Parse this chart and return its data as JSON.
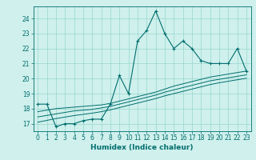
{
  "xlabel": "Humidex (Indice chaleur)",
  "bg_color": "#cff0ec",
  "line_color": "#006e6e",
  "grid_color": "#99d5d0",
  "x_values": [
    0,
    1,
    2,
    3,
    4,
    5,
    6,
    7,
    8,
    9,
    10,
    11,
    12,
    13,
    14,
    15,
    16,
    17,
    18,
    19,
    20,
    21,
    22,
    23
  ],
  "main_y": [
    18.3,
    18.3,
    16.8,
    17.0,
    17.0,
    17.2,
    17.3,
    17.3,
    18.3,
    20.2,
    19.0,
    22.5,
    23.2,
    24.5,
    23.0,
    22.0,
    22.5,
    22.0,
    21.2,
    21.0,
    21.0,
    21.0,
    22.0,
    20.5
  ],
  "trend_y1": [
    17.8,
    17.9,
    18.0,
    18.05,
    18.1,
    18.15,
    18.2,
    18.25,
    18.35,
    18.5,
    18.65,
    18.8,
    18.95,
    19.1,
    19.3,
    19.5,
    19.65,
    19.8,
    19.95,
    20.1,
    20.2,
    20.3,
    20.4,
    20.5
  ],
  "trend_y2": [
    17.45,
    17.55,
    17.65,
    17.75,
    17.85,
    17.9,
    17.95,
    18.05,
    18.15,
    18.3,
    18.45,
    18.6,
    18.75,
    18.9,
    19.1,
    19.25,
    19.4,
    19.55,
    19.7,
    19.85,
    19.95,
    20.05,
    20.15,
    20.25
  ],
  "trend_y3": [
    17.1,
    17.22,
    17.34,
    17.44,
    17.54,
    17.62,
    17.7,
    17.8,
    17.92,
    18.07,
    18.22,
    18.37,
    18.52,
    18.67,
    18.85,
    19.0,
    19.15,
    19.3,
    19.45,
    19.6,
    19.72,
    19.82,
    19.92,
    20.02
  ],
  "ylim": [
    16.5,
    24.8
  ],
  "xlim": [
    -0.5,
    23.5
  ],
  "yticks": [
    17,
    18,
    19,
    20,
    21,
    22,
    23,
    24
  ],
  "xticks": [
    0,
    1,
    2,
    3,
    4,
    5,
    6,
    7,
    8,
    9,
    10,
    11,
    12,
    13,
    14,
    15,
    16,
    17,
    18,
    19,
    20,
    21,
    22,
    23
  ],
  "tick_fontsize": 5.5,
  "xlabel_fontsize": 6.5
}
